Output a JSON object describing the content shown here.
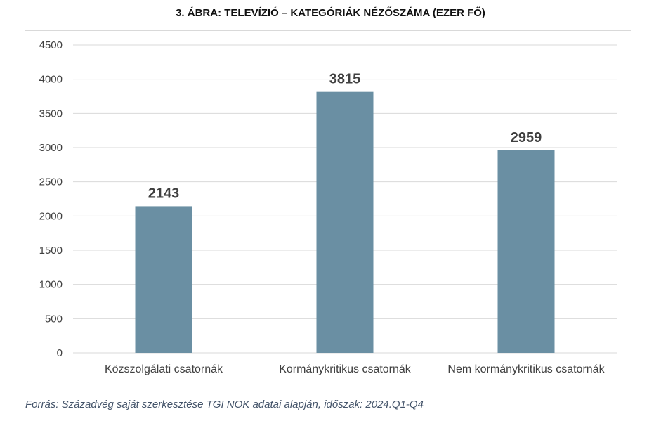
{
  "title": "3. ÁBRA: TELEVÍZIÓ – KATEGÓRIÁK NÉZŐSZÁMA (EZER FŐ)",
  "source": "Forrás: Századvég saját szerkesztése TGI NOK adatai alapján, időszak: 2024.Q1-Q4",
  "chart_data": {
    "type": "bar",
    "title": "3. ÁBRA: TELEVÍZIÓ – KATEGÓRIÁK NÉZŐSZÁMA (EZER FŐ)",
    "categories": [
      "Közszolgálati csatornák",
      "Kormánykritikus csatornák",
      "Nem kormánykritikus csatornák"
    ],
    "values": [
      2143,
      3815,
      2959
    ],
    "data_labels": [
      "2143",
      "3815",
      "2959"
    ],
    "ylim": [
      0,
      4500
    ],
    "yticks": [
      0,
      500,
      1000,
      1500,
      2000,
      2500,
      3000,
      3500,
      4000,
      4500
    ],
    "ytick_labels": [
      "0",
      "500",
      "1000",
      "1500",
      "2000",
      "2500",
      "3000",
      "3500",
      "4000",
      "4500"
    ],
    "xlabel": "",
    "ylabel": "",
    "grid": true,
    "legend": "none",
    "bar_color": "#6a8fa3",
    "grid_color": "#d9d9d9"
  }
}
